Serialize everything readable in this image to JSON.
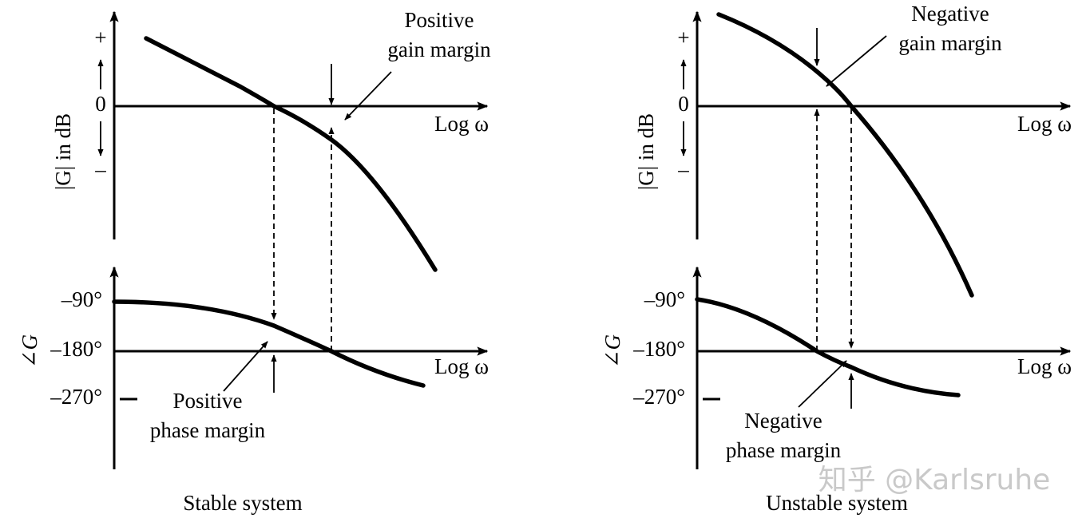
{
  "panels": [
    {
      "magnitude": {
        "axis_label": "|G| in dB",
        "ticks": [
          "+",
          "0",
          "–"
        ],
        "x_label": "Log ω",
        "annotation": [
          "Positive",
          "gain margin"
        ]
      },
      "phase": {
        "axis_label": "∠G",
        "ticks": [
          "–90°",
          "–180°",
          "–270°"
        ],
        "x_label": "Log ω",
        "annotation": [
          "Positive",
          "phase margin"
        ]
      },
      "caption": "Stable system"
    },
    {
      "magnitude": {
        "axis_label": "|G| in dB",
        "ticks": [
          "+",
          "0",
          "–"
        ],
        "x_label": "Log ω",
        "annotation": [
          "Negative",
          "gain margin"
        ]
      },
      "phase": {
        "axis_label": "∠G",
        "ticks": [
          "–90°",
          "–180°",
          "–270°"
        ],
        "x_label": "Log ω",
        "annotation": [
          "Negative",
          "phase margin"
        ]
      },
      "caption": "Unstable system"
    }
  ],
  "watermark": "知乎 @Karlsruhe"
}
